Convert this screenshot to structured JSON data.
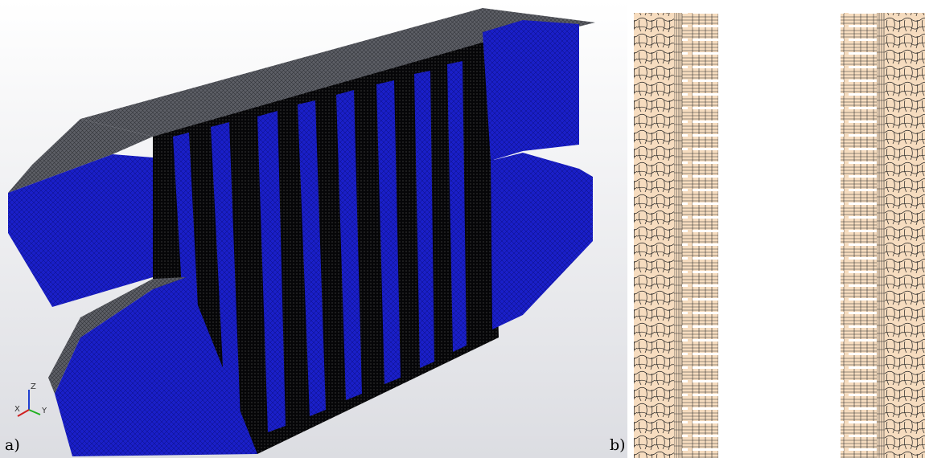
{
  "panels": [
    {
      "label": "a)",
      "axes": {
        "x": "X",
        "y": "Y",
        "z": "Z"
      }
    },
    {
      "label": "b)"
    }
  ]
}
